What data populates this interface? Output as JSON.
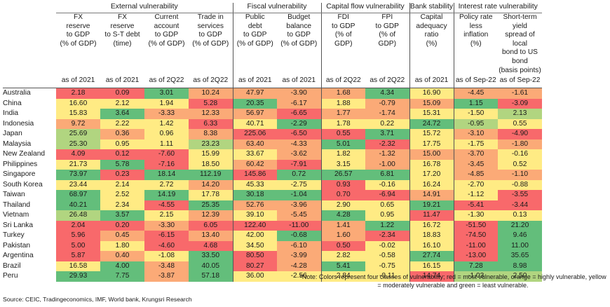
{
  "groups": [
    {
      "label": "External vulnerability",
      "span": 4
    },
    {
      "label": "Fiscal vulnerability",
      "span": 2
    },
    {
      "label": "Capital flow vulnerability",
      "span": 2
    },
    {
      "label": "Bank stability",
      "span": 1
    },
    {
      "label": "Interest rate vulnerability",
      "span": 2
    }
  ],
  "columns": [
    {
      "lines": [
        "FX",
        "reserve",
        "to GDP",
        "(% of GDP)"
      ],
      "as_of": "as of 2021"
    },
    {
      "lines": [
        "FX",
        "reserve",
        "to S-T debt",
        "(time)"
      ],
      "as_of": "as of 2021"
    },
    {
      "lines": [
        "Current",
        "account",
        "to GDP",
        "(% of GDP)"
      ],
      "as_of": "as of 2Q22"
    },
    {
      "lines": [
        "Trade in",
        "services",
        "to GDP",
        "(% of GDP)"
      ],
      "as_of": "as of 2Q22"
    },
    {
      "lines": [
        "Public",
        "debt",
        "to GDP",
        "(% of GDP)"
      ],
      "as_of": "as of 2021"
    },
    {
      "lines": [
        "Budget",
        "balance",
        "to GDP",
        "(% of GDP)"
      ],
      "as_of": "as of 2021"
    },
    {
      "lines": [
        "FDI",
        "to GDP",
        "(% of",
        "GDP)"
      ],
      "as_of": "as of 2Q22"
    },
    {
      "lines": [
        "FPI",
        "to GDP",
        "(% of",
        "GDP)"
      ],
      "as_of": "as of 2Q22"
    },
    {
      "lines": [
        "Capital",
        "adequacy",
        "ratio",
        "(%)"
      ],
      "as_of": "as of 2021"
    },
    {
      "lines": [
        "Policy rate",
        "less",
        "inflation",
        "(%)"
      ],
      "as_of": "as of Sep-22"
    },
    {
      "lines": [
        "Short-term yield",
        "spread of local",
        "bond to US bond",
        "(basis points)"
      ],
      "as_of": "as of Sep-22"
    }
  ],
  "rows": [
    {
      "country": "Australia",
      "values": [
        "2.18",
        "0.09",
        "3.01",
        "10.24",
        "47.97",
        "-3.90",
        "1.68",
        "4.34",
        "16.90",
        "-4.45",
        "-1.61"
      ],
      "levels": [
        "r",
        "r",
        "g",
        "o",
        "o",
        "o",
        "o",
        "g",
        "y",
        "o",
        "o"
      ]
    },
    {
      "country": "China",
      "values": [
        "16.60",
        "2.12",
        "1.94",
        "5.28",
        "20.35",
        "-6.17",
        "1.88",
        "-0.79",
        "15.09",
        "1.15",
        "-3.09"
      ],
      "levels": [
        "y",
        "y",
        "y",
        "r",
        "g",
        "o",
        "y",
        "o",
        "o",
        "g",
        "r"
      ]
    },
    {
      "country": "India",
      "values": [
        "15.83",
        "3.64",
        "-3.33",
        "12.33",
        "56.97",
        "-6.65",
        "1.77",
        "-1.74",
        "15.31",
        "-1.50",
        "2.13"
      ],
      "levels": [
        "y",
        "g",
        "o",
        "o",
        "o",
        "r",
        "o",
        "o",
        "y",
        "y",
        "lg"
      ]
    },
    {
      "country": "Indonesia",
      "values": [
        "9.72",
        "2.22",
        "1.42",
        "6.33",
        "40.71",
        "-2.29",
        "1.78",
        "0.22",
        "24.72",
        "-0.95",
        "0.55"
      ],
      "levels": [
        "o",
        "y",
        "y",
        "r",
        "y",
        "g",
        "y",
        "y",
        "g",
        "lg",
        "y"
      ]
    },
    {
      "country": "Japan",
      "values": [
        "25.69",
        "0.36",
        "0.96",
        "8.38",
        "225.06",
        "-6.50",
        "0.55",
        "3.71",
        "15.72",
        "-3.10",
        "-4.90"
      ],
      "levels": [
        "lg",
        "o",
        "y",
        "o",
        "r",
        "r",
        "r",
        "g",
        "y",
        "o",
        "r"
      ]
    },
    {
      "country": "Malaysia",
      "values": [
        "25.30",
        "0.95",
        "1.11",
        "23.23",
        "63.40",
        "-4.33",
        "5.01",
        "-2.32",
        "17.75",
        "-1.75",
        "-1.80"
      ],
      "levels": [
        "lg",
        "y",
        "y",
        "lg",
        "o",
        "o",
        "g",
        "r",
        "y",
        "y",
        "o"
      ]
    },
    {
      "country": "New Zealand",
      "values": [
        "4.09",
        "0.12",
        "-7.60",
        "15.99",
        "33.67",
        "-3.62",
        "1.82",
        "-1.32",
        "15.00",
        "-3.70",
        "-0.16"
      ],
      "levels": [
        "r",
        "r",
        "r",
        "y",
        "y",
        "o",
        "y",
        "o",
        "o",
        "o",
        "y"
      ]
    },
    {
      "country": "Philippines",
      "values": [
        "21.73",
        "5.78",
        "-7.16",
        "18.50",
        "60.42",
        "-7.91",
        "3.15",
        "-1.00",
        "16.78",
        "-3.45",
        "0.52"
      ],
      "levels": [
        "y",
        "g",
        "r",
        "y",
        "o",
        "r",
        "y",
        "o",
        "y",
        "o",
        "y"
      ]
    },
    {
      "country": "Singapore",
      "values": [
        "73.97",
        "0.23",
        "18.14",
        "112.19",
        "145.86",
        "0.72",
        "26.57",
        "6.81",
        "17.20",
        "-4.85",
        "-1.10"
      ],
      "levels": [
        "g",
        "r",
        "g",
        "g",
        "r",
        "g",
        "g",
        "g",
        "y",
        "o",
        "o"
      ]
    },
    {
      "country": "South Korea",
      "values": [
        "23.44",
        "2.14",
        "2.72",
        "14.20",
        "45.33",
        "-2.75",
        "0.93",
        "-0.16",
        "16.24",
        "-2.70",
        "-0.88"
      ],
      "levels": [
        "y",
        "y",
        "y",
        "o",
        "y",
        "y",
        "r",
        "y",
        "y",
        "y",
        "y"
      ]
    },
    {
      "country": "Taiwan",
      "values": [
        "68.97",
        "2.52",
        "14.19",
        "17.78",
        "30.18",
        "-1.04",
        "0.70",
        "-6.94",
        "14.91",
        "-1.12",
        "-3.55"
      ],
      "levels": [
        "g",
        "y",
        "g",
        "y",
        "g",
        "g",
        "r",
        "r",
        "o",
        "y",
        "r"
      ]
    },
    {
      "country": "Thailand",
      "values": [
        "40.21",
        "2.34",
        "-4.55",
        "25.35",
        "52.76",
        "-3.96",
        "2.90",
        "0.65",
        "19.21",
        "-5.41",
        "-3.44"
      ],
      "levels": [
        "g",
        "y",
        "r",
        "g",
        "o",
        "o",
        "y",
        "y",
        "g",
        "r",
        "r"
      ]
    },
    {
      "country": "Vietnam",
      "values": [
        "26.48",
        "3.57",
        "2.15",
        "12.39",
        "39.10",
        "-5.45",
        "4.28",
        "0.95",
        "11.47",
        "-1.30",
        "0.13"
      ],
      "levels": [
        "lg",
        "g",
        "y",
        "o",
        "y",
        "o",
        "g",
        "y",
        "r",
        "y",
        "y"
      ]
    },
    {
      "country": "Sri Lanka",
      "values": [
        "2.04",
        "0.20",
        "-3.30",
        "6.05",
        "122.40",
        "-11.00",
        "1.41",
        "1.22",
        "16.72",
        "-51.50",
        "21.20"
      ],
      "levels": [
        "r",
        "r",
        "o",
        "r",
        "r",
        "r",
        "o",
        "g",
        "y",
        "r",
        "g"
      ]
    },
    {
      "country": "Turkey",
      "values": [
        "5.96",
        "0.45",
        "-6.15",
        "13.40",
        "42.00",
        "-0.68",
        "1.60",
        "-2.34",
        "18.83",
        "-74.50",
        "9.46"
      ],
      "levels": [
        "r",
        "o",
        "r",
        "o",
        "y",
        "g",
        "o",
        "r",
        "y",
        "r",
        "g"
      ]
    },
    {
      "country": "Pakistan",
      "values": [
        "5.00",
        "1.80",
        "-4.60",
        "4.68",
        "34.50",
        "-6.10",
        "0.50",
        "-0.02",
        "16.10",
        "-11.00",
        "11.00"
      ],
      "levels": [
        "r",
        "y",
        "r",
        "r",
        "y",
        "o",
        "r",
        "y",
        "y",
        "r",
        "g"
      ]
    },
    {
      "country": "Argentina",
      "values": [
        "5.87",
        "0.40",
        "-1.08",
        "33.50",
        "80.50",
        "-3.99",
        "2.82",
        "-0.58",
        "27.74",
        "-13.00",
        "35.65"
      ],
      "levels": [
        "r",
        "o",
        "y",
        "g",
        "r",
        "o",
        "y",
        "y",
        "g",
        "r",
        "g"
      ]
    },
    {
      "country": "Brazil",
      "values": [
        "16.58",
        "4.00",
        "-3.48",
        "40.05",
        "80.27",
        "-4.28",
        "5.41",
        "-0.75",
        "16.15",
        "7.28",
        "8.98"
      ],
      "levels": [
        "y",
        "g",
        "o",
        "g",
        "r",
        "o",
        "g",
        "y",
        "y",
        "g",
        "g"
      ]
    },
    {
      "country": "Peru",
      "values": [
        "29.93",
        "7.75",
        "-3.87",
        "57.18",
        "36.00",
        "-2.56",
        "2.84",
        "-0.11",
        "14.74",
        "-1.03",
        "2.50"
      ],
      "levels": [
        "g",
        "g",
        "o",
        "g",
        "y",
        "y",
        "y",
        "y",
        "r",
        "lg",
        "lg"
      ]
    }
  ],
  "colors": {
    "r": "#f8696b",
    "o": "#fbaa77",
    "y": "#ffeb84",
    "g": "#63be7b",
    "lg": "#b1d580"
  },
  "note": "*Note: Colors represent four classes of vulnerability; red = most vulnerable, orange = highly vulnerable, yellow = moderately vulnerable  and green = least vulnerable.",
  "source": "Source:  CEIC, Tradingeconomics, IMF, World bank, Krungsri Research"
}
